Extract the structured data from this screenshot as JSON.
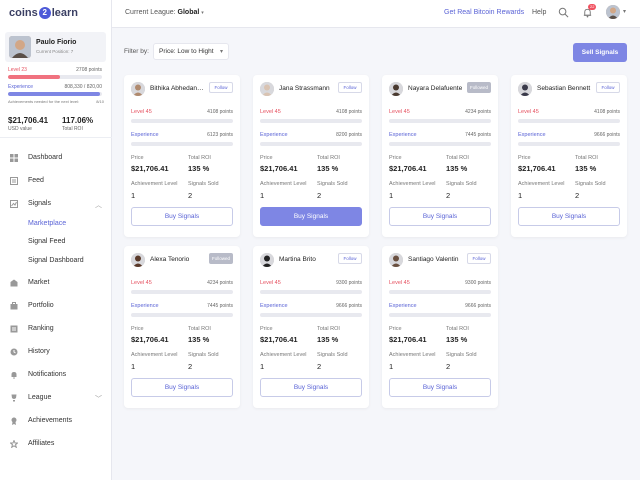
{
  "brand": {
    "left": "coins",
    "coin": "2",
    "right": "learn"
  },
  "profile": {
    "name": "Paulo Fiorio",
    "position": "Current Position: 7"
  },
  "sidebar_progress": {
    "level_label": "Level 23",
    "level_points": "2708 points",
    "level_fill": 0.55,
    "exp_label": "Experience",
    "exp_points": "808,330 / 820,00",
    "exp_fill": 0.98,
    "ach_note": "Achievements needed for the next level:",
    "ach_value": "8/10"
  },
  "stats": {
    "usd_value": "$21,706.41",
    "usd_label": "USD value",
    "roi_value": "117.06%",
    "roi_label": "Total ROI"
  },
  "nav": [
    {
      "label": "Dashboard",
      "icon": "dashboard-icon"
    },
    {
      "label": "Feed",
      "icon": "feed-icon"
    },
    {
      "label": "Signals",
      "icon": "signals-icon"
    },
    {
      "label": "Market",
      "icon": "market-icon"
    },
    {
      "label": "Portfolio",
      "icon": "portfolio-icon"
    },
    {
      "label": "Ranking",
      "icon": "ranking-icon"
    },
    {
      "label": "History",
      "icon": "history-icon"
    },
    {
      "label": "Notifications",
      "icon": "notifications-icon"
    },
    {
      "label": "League",
      "icon": "league-icon"
    },
    {
      "label": "Achievements",
      "icon": "achievements-icon"
    },
    {
      "label": "Affiliates",
      "icon": "affiliates-icon"
    }
  ],
  "signals_sub": [
    "Marketplace",
    "Signal Feed",
    "Signal Dashboard"
  ],
  "topbar": {
    "league_prefix": "Current League:",
    "league_value": "Global",
    "reward_link": "Get Real Bitcoin Rewards",
    "help": "Help",
    "notif_count": "22"
  },
  "filter": {
    "label": "Filter by:",
    "value": "Price: Low to Hight"
  },
  "sell_button": "Sell Signals",
  "card_labels": {
    "experience": "Experience",
    "price": "Price",
    "roi": "Total ROI",
    "achievement": "Achievement Level",
    "signals_sold": "Signals Sold",
    "buy": "Buy Signals"
  },
  "colors": {
    "accent": "#7e86e4",
    "level": "#f0727f",
    "link": "#5a63d6"
  },
  "cards": [
    {
      "name": "Bithika Abhedananda",
      "follow": "Follow",
      "followed": false,
      "level": "Level 45",
      "level_points": "4108 points",
      "level_fill": 0.25,
      "exp_points": "6123 points",
      "exp_fill": 0.25,
      "price": "$21,706.41",
      "roi": "135 %",
      "achievement": "1",
      "signals_sold": "2",
      "buy_active": false,
      "avatar_color": "#b08a6e"
    },
    {
      "name": "Jana Strassmann",
      "follow": "Follow",
      "followed": false,
      "level": "Level 45",
      "level_points": "4108 points",
      "level_fill": 0.55,
      "exp_points": "8200 points",
      "exp_fill": 0.6,
      "price": "$21,706.41",
      "roi": "135 %",
      "achievement": "1",
      "signals_sold": "2",
      "buy_active": true,
      "avatar_color": "#d9c3b2"
    },
    {
      "name": "Nayara Delafuente",
      "follow": "Followed",
      "followed": true,
      "level": "Level 45",
      "level_points": "4234 points",
      "level_fill": 0.3,
      "exp_points": "7445 points",
      "exp_fill": 0.55,
      "price": "$21,706.41",
      "roi": "135 %",
      "achievement": "1",
      "signals_sold": "2",
      "buy_active": false,
      "avatar_color": "#4a3a30"
    },
    {
      "name": "Sebastian Bennett",
      "follow": "Follow",
      "followed": false,
      "level": "Level 45",
      "level_points": "4108 points",
      "level_fill": 0.9,
      "exp_points": "9666 points",
      "exp_fill": 0.85,
      "price": "$21,706.41",
      "roi": "135 %",
      "achievement": "1",
      "signals_sold": "2",
      "buy_active": false,
      "avatar_color": "#3a3a4a"
    },
    {
      "name": "Alexa Tenorio",
      "follow": "Followed",
      "followed": true,
      "level": "Level 45",
      "level_points": "4234 points",
      "level_fill": 0.3,
      "exp_points": "7445 points",
      "exp_fill": 0.55,
      "price": "$21,706.41",
      "roi": "135 %",
      "achievement": "1",
      "signals_sold": "2",
      "buy_active": false,
      "avatar_color": "#5a3a2a"
    },
    {
      "name": "Martina Brito",
      "follow": "Follow",
      "followed": false,
      "level": "Level 45",
      "level_points": "9300 points",
      "level_fill": 0.65,
      "exp_points": "9666 points",
      "exp_fill": 0.8,
      "price": "$21,706.41",
      "roi": "135 %",
      "achievement": "1",
      "signals_sold": "2",
      "buy_active": false,
      "avatar_color": "#222222"
    },
    {
      "name": "Santiago Valentin",
      "follow": "Follow",
      "followed": false,
      "level": "Level 45",
      "level_points": "9300 points",
      "level_fill": 0.65,
      "exp_points": "9666 points",
      "exp_fill": 0.8,
      "price": "$21,706.41",
      "roi": "135 %",
      "achievement": "1",
      "signals_sold": "2",
      "buy_active": false,
      "avatar_color": "#6a5040"
    }
  ]
}
